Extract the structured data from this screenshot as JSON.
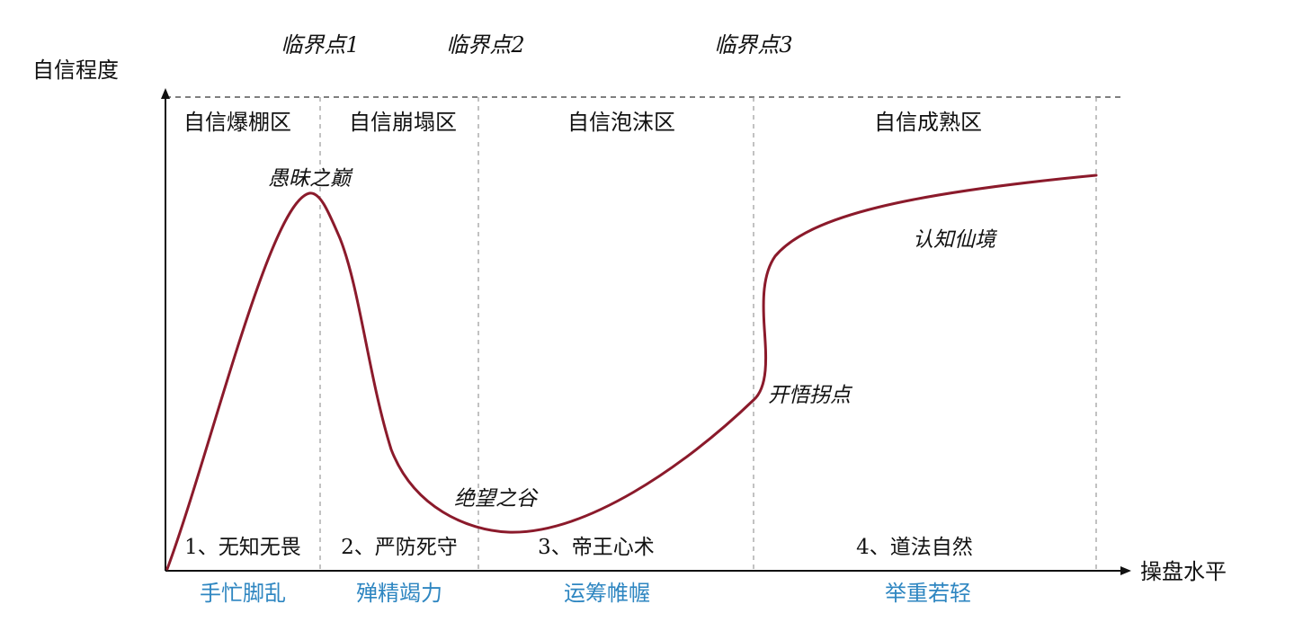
{
  "axes": {
    "y_label": "自信程度",
    "x_label": "操盘水平"
  },
  "critical_points": [
    "临界点1",
    "临界点2",
    "临界点3"
  ],
  "zones": [
    {
      "title": "自信爆棚区",
      "stage": "1、无知无畏",
      "action": "手忙脚乱"
    },
    {
      "title": "自信崩塌区",
      "stage": "2、严防死守",
      "action": "殚精竭力"
    },
    {
      "title": "自信泡沫区",
      "stage": "3、帝王心术",
      "action": "运筹帷幄"
    },
    {
      "title": "自信成熟区",
      "stage": "4、道法自然",
      "action": "举重若轻"
    }
  ],
  "curve_labels": {
    "peak": "愚昧之巅",
    "valley": "绝望之谷",
    "turning": "开悟拐点",
    "plateau": "认知仙境"
  },
  "colors": {
    "curve": "#8B1A2B",
    "action_text": "#2E86C1",
    "axis": "#111111",
    "divider": "#999999"
  }
}
